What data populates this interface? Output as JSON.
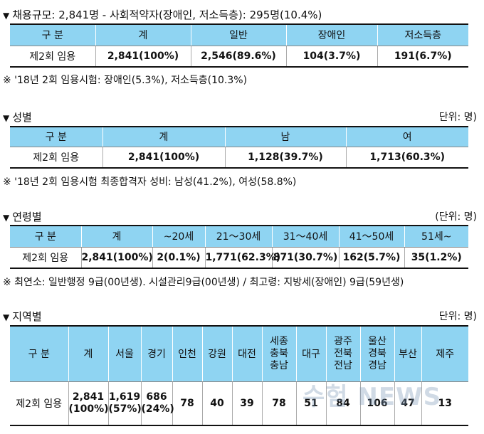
{
  "section1": {
    "title": "채용규모: 2,841명 - 사회적약자(장애인, 저소득층): 295명(10.4%)",
    "headers": [
      "구 분",
      "계",
      "일반",
      "장애인",
      "저소득층"
    ],
    "row": [
      "제2회 임용",
      "2,841(100%)",
      "2,546(89.6%)",
      "104(3.7%)",
      "191(6.7%)"
    ],
    "note": "※ '18년 2회 임용시험: 장애인(5.3%), 저소득층(10.3%)"
  },
  "section2": {
    "title": "성별",
    "unit": "단위: 명)",
    "headers": [
      "구 분",
      "계",
      "남",
      "여"
    ],
    "row": [
      "제2회 임용",
      "2,841(100%)",
      "1,128(39.7%)",
      "1,713(60.3%)"
    ],
    "note": "※ '18년 2회 임용시험 최종합격자 성비: 남성(41.2%), 여성(58.8%)"
  },
  "section3": {
    "title": "연령별",
    "unit": "(단위: 명)",
    "headers": [
      "구 분",
      "계",
      "~20세",
      "21～30세",
      "31～40세",
      "41～50세",
      "51세~"
    ],
    "row": [
      "제2회 임용",
      "2,841(100%)",
      "2(0.1%)",
      "1,771(62.3%)",
      "871(30.7%)",
      "162(5.7%)",
      "35(1.2%)"
    ],
    "note": "※ 최연소: 일반행정 9급(00년생). 시설관리9급(00년생) / 최고령: 지방세(장애인) 9급(59년생)"
  },
  "section4": {
    "title": "지역별",
    "unit": "단위: 명)",
    "headers": [
      "구 분",
      "계",
      "서울",
      "경기",
      "인천",
      "강원",
      "대전",
      "세종\n충북\n충남",
      "대구",
      "광주\n전북\n전남",
      "울산\n경북\n경남",
      "부산",
      "제주"
    ],
    "row": [
      "제2회 임용",
      "2,841\n(100%)",
      "1,619\n(57%)",
      "686\n(24%)",
      "78",
      "40",
      "39",
      "78",
      "51",
      "84",
      "106",
      "47",
      "13"
    ]
  },
  "watermark": "수험 NEWS"
}
